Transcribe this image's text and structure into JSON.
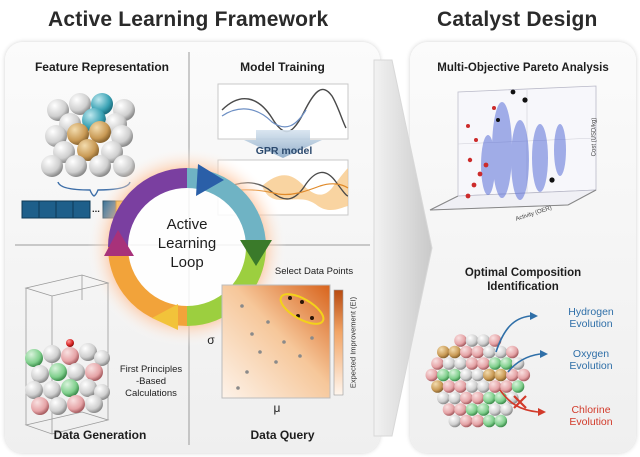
{
  "left_title": "Active Learning Framework",
  "right_title": "Catalyst Design",
  "quadrants": {
    "feature": "Feature Representation",
    "model": "Model Training",
    "generation": "Data Generation",
    "query": "Data Query"
  },
  "center_loop": {
    "line1": "Active",
    "line2": "Learning",
    "line3": "Loop"
  },
  "gpr_label": "GPR model",
  "feature_vector_ellipsis": "...",
  "first_principles": {
    "line1": "First Principles",
    "line2": "-Based",
    "line3": "Calculations"
  },
  "select_points": "Select Data Points",
  "axis_sigma": "σ",
  "axis_mu": "μ",
  "ei_colorbar_label": "Expected Improvement (EI)",
  "pareto_title": "Multi-Objective Pareto Analysis",
  "pareto_axis_labels": {
    "x": "Activity (OER)",
    "z": "Cost (USD/kg)"
  },
  "optimal_title_line1": "Optimal Composition",
  "optimal_title_line2": "Identification",
  "evolutions": {
    "hydrogen": {
      "line1": "Hydrogen",
      "line2": "Evolution",
      "color": "#2f6fa8"
    },
    "oxygen": {
      "line1": "Oxygen",
      "line2": "Evolution",
      "color": "#2f6fa8"
    },
    "chlorine": {
      "line1": "Chlorine",
      "line2": "Evolution",
      "color": "#d23a2a"
    }
  }
}
